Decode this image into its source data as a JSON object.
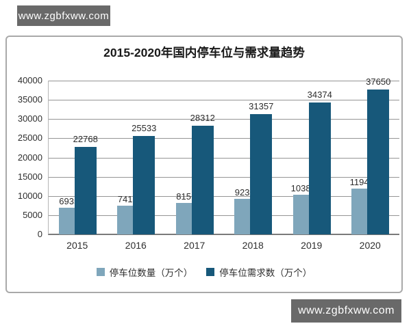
{
  "watermark_top": {
    "text": "www.zgbfxww.com"
  },
  "watermark_bottom": {
    "text": "www.zgbfxww.com"
  },
  "chart_data": {
    "type": "bar",
    "title": "2015-2020年国内停车位与需求量趋势",
    "categories": [
      "2015",
      "2016",
      "2017",
      "2018",
      "2019",
      "2020"
    ],
    "series": [
      {
        "name": "停车位数量（万个）",
        "color": "#7FA6BB",
        "values": [
          6935,
          7419,
          8151,
          9233,
          10385,
          11949
        ]
      },
      {
        "name": "停车位需求数（万个）",
        "color": "#17587A",
        "values": [
          22768,
          25533,
          28312,
          31357,
          34374,
          37650
        ]
      }
    ],
    "ylim": [
      0,
      40000
    ],
    "yticks": [
      0,
      5000,
      10000,
      15000,
      20000,
      25000,
      30000,
      35000,
      40000
    ],
    "grid": true,
    "legend_position": "bottom",
    "bar_style": "overlapped"
  }
}
